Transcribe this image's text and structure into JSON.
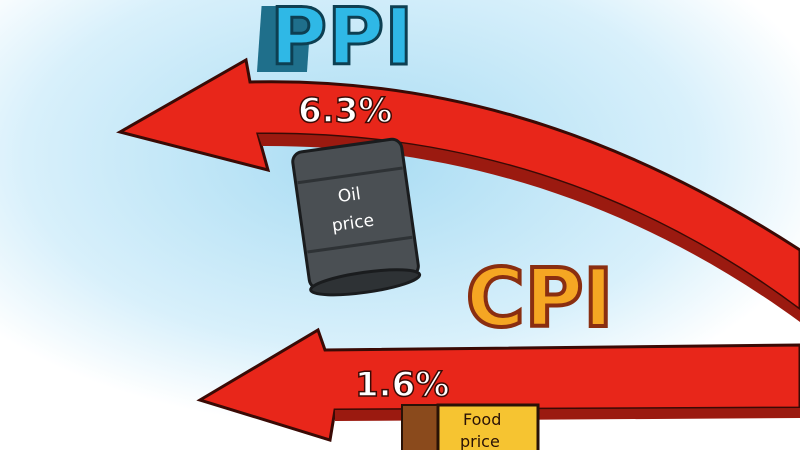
{
  "ppi": {
    "label": "PPI",
    "value": "6.3%",
    "item": [
      "Oil",
      "price"
    ],
    "color": "#2fb8e6"
  },
  "cpi": {
    "label": "CPI",
    "value": "1.6%",
    "item": [
      "Food",
      "price"
    ],
    "color": "#f5a623"
  },
  "colors": {
    "arrow": "#e8261a",
    "sky": "#bfe6f7",
    "barrel": "#4a4f53",
    "food_box": "#f6c431"
  }
}
